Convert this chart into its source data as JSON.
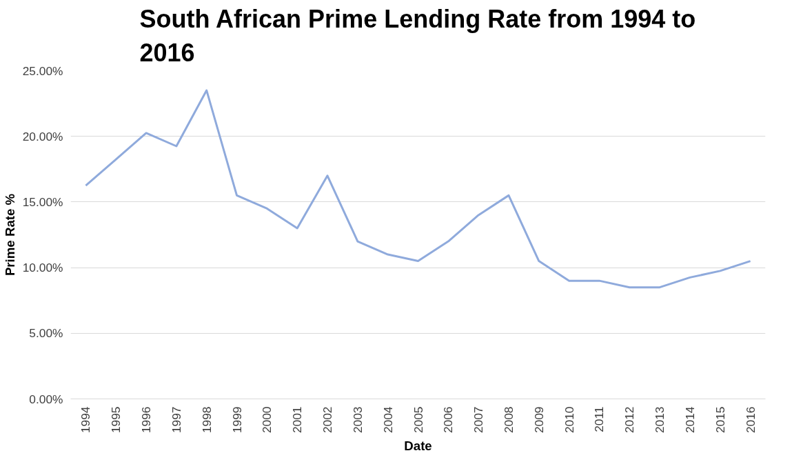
{
  "chart_data": {
    "type": "line",
    "title": "South African Prime Lending Rate from 1994 to 2016",
    "xlabel": "Date",
    "ylabel": "Prime Rate %",
    "categories": [
      "1994",
      "1995",
      "1996",
      "1997",
      "1998",
      "1999",
      "2000",
      "2001",
      "2002",
      "2003",
      "2004",
      "2005",
      "2006",
      "2007",
      "2008",
      "2009",
      "2010",
      "2011",
      "2012",
      "2013",
      "2014",
      "2015",
      "2016"
    ],
    "series": [
      {
        "color": "#8faadc",
        "values": [
          16.25,
          18.25,
          20.25,
          19.25,
          23.5,
          15.5,
          14.5,
          13.0,
          17.0,
          12.0,
          11.0,
          10.5,
          12.0,
          14.0,
          15.5,
          10.5,
          9.0,
          9.0,
          8.5,
          8.5,
          9.25,
          9.75,
          10.5
        ]
      }
    ],
    "ylim": [
      0,
      25
    ],
    "yticks": [
      {
        "value": 0,
        "label": "0.00%"
      },
      {
        "value": 5,
        "label": "5.00%"
      },
      {
        "value": 10,
        "label": "10.00%"
      },
      {
        "value": 15,
        "label": "15.00%"
      },
      {
        "value": 20,
        "label": "20.00%"
      },
      {
        "value": 25,
        "label": "25.00%"
      }
    ],
    "grid": "y",
    "marker": "none",
    "line_style": "solid"
  }
}
